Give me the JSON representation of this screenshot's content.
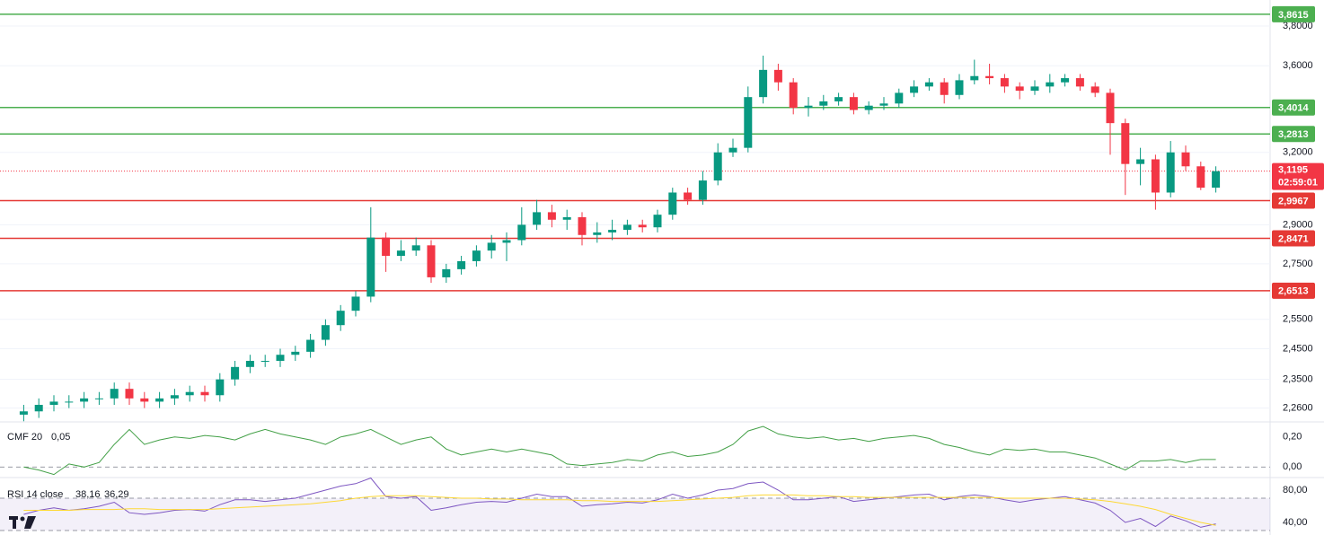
{
  "chart_data": [
    {
      "type": "candlestick",
      "log_scale": true,
      "grid": true,
      "up_color": "#089981",
      "down_color": "#f23645",
      "ylim": [
        2.218,
        3.937
      ],
      "yticks": [
        {
          "value": 3.8,
          "label": "3,8000"
        },
        {
          "value": 3.6,
          "label": "3,6000"
        },
        {
          "value": 3.2,
          "label": "3,2000"
        },
        {
          "value": 2.9,
          "label": "2,9000"
        },
        {
          "value": 2.75,
          "label": "2,7500"
        },
        {
          "value": 2.55,
          "label": "2,5500"
        },
        {
          "value": 2.45,
          "label": "2,4500"
        },
        {
          "value": 2.35,
          "label": "2,3500"
        },
        {
          "value": 2.26,
          "label": "2,2600"
        }
      ],
      "levels": [
        {
          "value": 3.8615,
          "label": "3,8615",
          "color": "#4caf50"
        },
        {
          "value": 3.4014,
          "label": "3,4014",
          "color": "#4caf50"
        },
        {
          "value": 3.2813,
          "label": "3,2813",
          "color": "#4caf50"
        },
        {
          "value": 2.9967,
          "label": "2,9967",
          "color": "#e53935"
        },
        {
          "value": 2.8471,
          "label": "2,8471",
          "color": "#e53935"
        },
        {
          "value": 2.6513,
          "label": "2,6513",
          "color": "#e53935"
        }
      ],
      "last_price": {
        "value": 3.1195,
        "label": "3,1195",
        "countdown": "02:59:01",
        "color": "#f23645"
      },
      "open": [
        2.24,
        2.25,
        2.27,
        2.28,
        2.28,
        2.29,
        2.29,
        2.32,
        2.29,
        2.28,
        2.29,
        2.3,
        2.31,
        2.3,
        2.35,
        2.39,
        2.41,
        2.41,
        2.43,
        2.44,
        2.48,
        2.53,
        2.58,
        2.63,
        2.85,
        2.78,
        2.8,
        2.82,
        2.7,
        2.73,
        2.76,
        2.8,
        2.83,
        2.84,
        2.9,
        2.95,
        2.92,
        2.93,
        2.86,
        2.87,
        2.88,
        2.9,
        2.89,
        2.94,
        3.03,
        3.0,
        3.08,
        3.2,
        3.22,
        3.45,
        3.58,
        3.52,
        3.4,
        3.41,
        3.43,
        3.45,
        3.39,
        3.41,
        3.42,
        3.47,
        3.5,
        3.52,
        3.46,
        3.53,
        3.55,
        3.54,
        3.5,
        3.48,
        3.5,
        3.52,
        3.54,
        3.5,
        3.47,
        3.33,
        3.15,
        3.17,
        3.03,
        3.2,
        3.14,
        3.05
      ],
      "high": [
        2.27,
        2.29,
        2.3,
        2.3,
        2.31,
        2.31,
        2.34,
        2.34,
        2.31,
        2.31,
        2.32,
        2.33,
        2.33,
        2.37,
        2.41,
        2.43,
        2.43,
        2.45,
        2.46,
        2.5,
        2.55,
        2.6,
        2.65,
        2.97,
        2.87,
        2.84,
        2.85,
        2.84,
        2.75,
        2.78,
        2.82,
        2.86,
        2.87,
        2.97,
        3.0,
        2.98,
        2.96,
        2.95,
        2.91,
        2.92,
        2.92,
        2.92,
        2.96,
        3.05,
        3.05,
        3.12,
        3.24,
        3.26,
        3.5,
        3.65,
        3.61,
        3.54,
        3.45,
        3.46,
        3.47,
        3.47,
        3.43,
        3.45,
        3.49,
        3.53,
        3.54,
        3.54,
        3.56,
        3.63,
        3.61,
        3.56,
        3.52,
        3.53,
        3.56,
        3.56,
        3.56,
        3.52,
        3.49,
        3.35,
        3.22,
        3.19,
        3.25,
        3.23,
        3.16,
        3.14
      ],
      "low": [
        2.22,
        2.23,
        2.25,
        2.26,
        2.26,
        2.27,
        2.27,
        2.27,
        2.26,
        2.26,
        2.27,
        2.28,
        2.28,
        2.28,
        2.33,
        2.37,
        2.39,
        2.39,
        2.41,
        2.42,
        2.46,
        2.51,
        2.56,
        2.61,
        2.72,
        2.76,
        2.78,
        2.68,
        2.68,
        2.71,
        2.74,
        2.77,
        2.76,
        2.82,
        2.88,
        2.89,
        2.88,
        2.82,
        2.83,
        2.84,
        2.86,
        2.87,
        2.87,
        2.92,
        2.98,
        2.98,
        3.06,
        3.18,
        3.2,
        3.42,
        3.48,
        3.37,
        3.36,
        3.39,
        3.41,
        3.37,
        3.37,
        3.39,
        3.4,
        3.45,
        3.48,
        3.42,
        3.44,
        3.51,
        3.51,
        3.47,
        3.44,
        3.46,
        3.47,
        3.5,
        3.48,
        3.45,
        3.19,
        3.02,
        3.06,
        2.96,
        3.01,
        3.12,
        3.04,
        3.03
      ],
      "close": [
        2.25,
        2.27,
        2.28,
        2.28,
        2.29,
        2.29,
        2.32,
        2.29,
        2.28,
        2.29,
        2.3,
        2.31,
        2.3,
        2.35,
        2.39,
        2.41,
        2.41,
        2.43,
        2.44,
        2.48,
        2.53,
        2.58,
        2.63,
        2.85,
        2.78,
        2.8,
        2.82,
        2.7,
        2.73,
        2.76,
        2.8,
        2.83,
        2.84,
        2.9,
        2.95,
        2.92,
        2.93,
        2.86,
        2.87,
        2.88,
        2.9,
        2.89,
        2.94,
        3.03,
        3.0,
        3.08,
        3.2,
        3.22,
        3.45,
        3.58,
        3.52,
        3.4,
        3.41,
        3.43,
        3.45,
        3.39,
        3.41,
        3.42,
        3.47,
        3.5,
        3.52,
        3.46,
        3.53,
        3.55,
        3.54,
        3.5,
        3.48,
        3.5,
        3.52,
        3.54,
        3.5,
        3.47,
        3.33,
        3.15,
        3.17,
        3.03,
        3.2,
        3.14,
        3.05,
        3.1195
      ]
    },
    {
      "type": "line",
      "title": "CMF 20",
      "current_label": "0,05",
      "current_value": 0.05,
      "color": "#43a047",
      "ylim": [
        -0.07,
        0.3
      ],
      "yticks": [
        {
          "value": 0.2,
          "label": "0,20"
        },
        {
          "value": 0,
          "label": "0,00"
        }
      ],
      "zero_line": true,
      "values": [
        0.0,
        -0.02,
        -0.05,
        0.02,
        0.0,
        0.03,
        0.15,
        0.25,
        0.15,
        0.18,
        0.2,
        0.19,
        0.21,
        0.2,
        0.18,
        0.22,
        0.25,
        0.22,
        0.2,
        0.18,
        0.15,
        0.2,
        0.22,
        0.25,
        0.2,
        0.15,
        0.18,
        0.2,
        0.12,
        0.08,
        0.1,
        0.12,
        0.1,
        0.12,
        0.1,
        0.08,
        0.02,
        0.01,
        0.02,
        0.03,
        0.05,
        0.04,
        0.08,
        0.1,
        0.07,
        0.08,
        0.1,
        0.15,
        0.24,
        0.27,
        0.22,
        0.2,
        0.19,
        0.2,
        0.18,
        0.19,
        0.17,
        0.19,
        0.2,
        0.21,
        0.19,
        0.15,
        0.13,
        0.1,
        0.08,
        0.12,
        0.11,
        0.12,
        0.1,
        0.1,
        0.08,
        0.06,
        0.02,
        -0.02,
        0.04,
        0.04,
        0.05,
        0.03,
        0.05,
        0.05
      ]
    },
    {
      "type": "line",
      "title": "RSI 14 close",
      "ylim": [
        24.4,
        95.6
      ],
      "yticks": [
        {
          "value": 80,
          "label": "80,00"
        },
        {
          "value": 40,
          "label": "40,00"
        }
      ],
      "band": [
        30,
        70
      ],
      "series": [
        {
          "name": "38,16",
          "color": "#7e57c2",
          "values": [
            50,
            55,
            58,
            55,
            57,
            60,
            65,
            52,
            50,
            52,
            55,
            56,
            54,
            62,
            68,
            68,
            66,
            68,
            70,
            75,
            80,
            85,
            88,
            95,
            72,
            70,
            72,
            55,
            58,
            62,
            65,
            66,
            65,
            70,
            75,
            72,
            72,
            60,
            62,
            63,
            65,
            64,
            68,
            75,
            70,
            74,
            80,
            82,
            88,
            90,
            80,
            68,
            68,
            70,
            72,
            66,
            68,
            70,
            72,
            74,
            75,
            68,
            72,
            74,
            72,
            68,
            65,
            68,
            70,
            72,
            68,
            64,
            55,
            40,
            45,
            35,
            48,
            42,
            34,
            38.16
          ]
        },
        {
          "name": "36,29",
          "color": "#fdd835",
          "values": [
            55,
            55,
            55,
            55,
            56,
            56,
            56,
            57,
            57,
            56,
            56,
            56,
            56,
            57,
            58,
            59,
            60,
            61,
            62,
            63,
            65,
            67,
            70,
            72,
            73,
            73,
            73,
            72,
            71,
            70,
            70,
            69,
            69,
            68,
            68,
            68,
            68,
            67,
            67,
            66,
            66,
            66,
            66,
            67,
            68,
            69,
            70,
            71,
            73,
            74,
            74,
            74,
            73,
            73,
            72,
            72,
            71,
            71,
            71,
            71,
            71,
            71,
            71,
            71,
            71,
            70,
            70,
            70,
            70,
            70,
            69,
            68,
            66,
            63,
            60,
            56,
            50,
            45,
            40,
            36.29
          ]
        }
      ]
    }
  ]
}
